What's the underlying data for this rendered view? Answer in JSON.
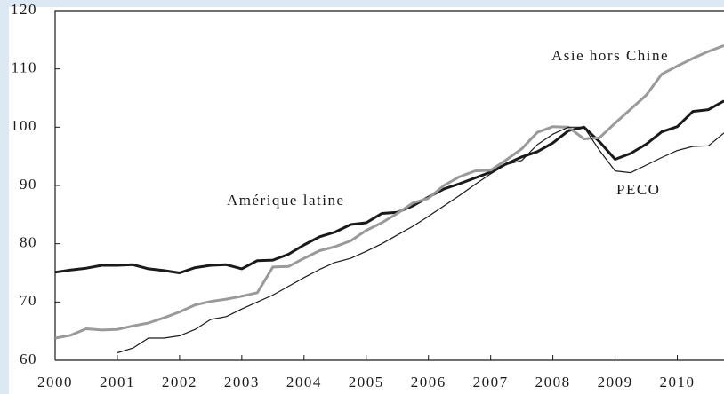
{
  "chart_data": {
    "type": "line",
    "x": [
      2000,
      2000.25,
      2000.5,
      2000.75,
      2001,
      2001.25,
      2001.5,
      2001.75,
      2002,
      2002.25,
      2002.5,
      2002.75,
      2003,
      2003.25,
      2003.5,
      2003.75,
      2004,
      2004.25,
      2004.5,
      2004.75,
      2005,
      2005.25,
      2005.5,
      2005.75,
      2006,
      2006.25,
      2006.5,
      2006.75,
      2007,
      2007.25,
      2007.5,
      2007.75,
      2008,
      2008.25,
      2008.5,
      2008.75,
      2009,
      2009.25,
      2009.5,
      2009.75,
      2010,
      2010.25,
      2010.5,
      2010.75
    ],
    "series": [
      {
        "name": "Amérique latine",
        "color": "#1a1a1a",
        "width": 3,
        "values": [
          75.1,
          75.5,
          75.8,
          76.3,
          76.3,
          76.4,
          75.7,
          75.4,
          75.0,
          75.9,
          76.3,
          76.4,
          75.7,
          77.1,
          77.2,
          78.2,
          79.8,
          81.2,
          82.0,
          83.3,
          83.6,
          85.2,
          85.4,
          86.5,
          88.0,
          89.4,
          90.3,
          91.3,
          92.3,
          93.7,
          94.9,
          95.8,
          97.3,
          99.4,
          100.0,
          97.5,
          94.5,
          95.5,
          97.1,
          99.2,
          100.1,
          102.7,
          103.0,
          104.5
        ]
      },
      {
        "name": "Asie hors Chine",
        "color": "#9a9a9a",
        "width": 3,
        "values": [
          63.8,
          64.3,
          65.4,
          65.2,
          65.3,
          65.9,
          66.4,
          67.3,
          68.3,
          69.5,
          70.1,
          70.5,
          71.0,
          71.6,
          76.0,
          76.1,
          77.5,
          78.8,
          79.5,
          80.5,
          82.3,
          83.6,
          85.2,
          87.0,
          87.8,
          90.0,
          91.5,
          92.5,
          92.6,
          94.4,
          96.3,
          99.1,
          100.1,
          100.0,
          98.0,
          98.2,
          100.7,
          103.1,
          105.5,
          109.1,
          110.5,
          111.8,
          113.0,
          114.0
        ]
      },
      {
        "name": "PECO",
        "color": "#1a1a1a",
        "width": 1.2,
        "values": [
          null,
          null,
          null,
          null,
          61.3,
          62.1,
          63.8,
          63.8,
          64.2,
          65.3,
          67.0,
          67.5,
          68.8,
          70.0,
          71.2,
          72.7,
          74.2,
          75.6,
          76.8,
          77.5,
          78.7,
          80.0,
          81.5,
          83.0,
          84.7,
          86.5,
          88.3,
          90.2,
          92.0,
          93.6,
          94.3,
          97.0,
          98.8,
          100.0,
          100.0,
          96.0,
          92.5,
          92.2,
          93.5,
          94.8,
          96.0,
          96.7,
          96.8,
          99.0
        ]
      }
    ],
    "xlim": [
      2000,
      2010.75
    ],
    "xticks": [
      2000,
      2001,
      2002,
      2003,
      2004,
      2005,
      2006,
      2007,
      2008,
      2009,
      2010
    ],
    "ylim": [
      60,
      120
    ],
    "yticks": [
      60,
      70,
      80,
      90,
      100,
      110,
      120
    ]
  }
}
